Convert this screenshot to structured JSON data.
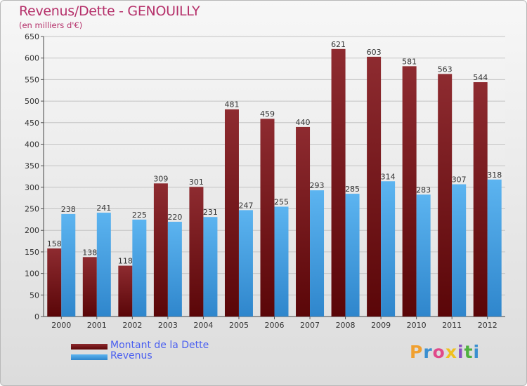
{
  "title": "Revenus/Dette - GENOUILLY",
  "subtitle": "(en milliers d'€)",
  "legend": {
    "debt_label": "Montant de la Dette",
    "revenue_label": "Revenus"
  },
  "logo": {
    "letters": [
      "P",
      "r",
      "o",
      "x",
      "i",
      "t",
      "i"
    ],
    "colors": [
      "#f0a030",
      "#3a8fd0",
      "#e04a8a",
      "#f0c020",
      "#8a50c0",
      "#50b040",
      "#3a8fd0"
    ]
  },
  "colors": {
    "debt": "#7a1a1e",
    "revenue": "#4aa2e4",
    "title": "#b5306a",
    "legend_text": "#4a5ff0"
  },
  "chart_data": {
    "type": "bar",
    "categories": [
      "2000",
      "2001",
      "2002",
      "2003",
      "2004",
      "2005",
      "2006",
      "2007",
      "2008",
      "2009",
      "2010",
      "2011",
      "2012"
    ],
    "series": [
      {
        "name": "Montant de la Dette",
        "values": [
          158,
          138,
          118,
          309,
          301,
          481,
          459,
          440,
          621,
          603,
          581,
          563,
          544
        ]
      },
      {
        "name": "Revenus",
        "values": [
          238,
          241,
          225,
          220,
          231,
          247,
          255,
          293,
          285,
          314,
          283,
          307,
          318
        ]
      }
    ],
    "yticks": [
      0,
      50,
      100,
      150,
      200,
      250,
      300,
      350,
      400,
      450,
      500,
      550,
      600,
      650
    ],
    "ylim": [
      0,
      650
    ],
    "grid": true,
    "legend_position": "bottom-left"
  }
}
